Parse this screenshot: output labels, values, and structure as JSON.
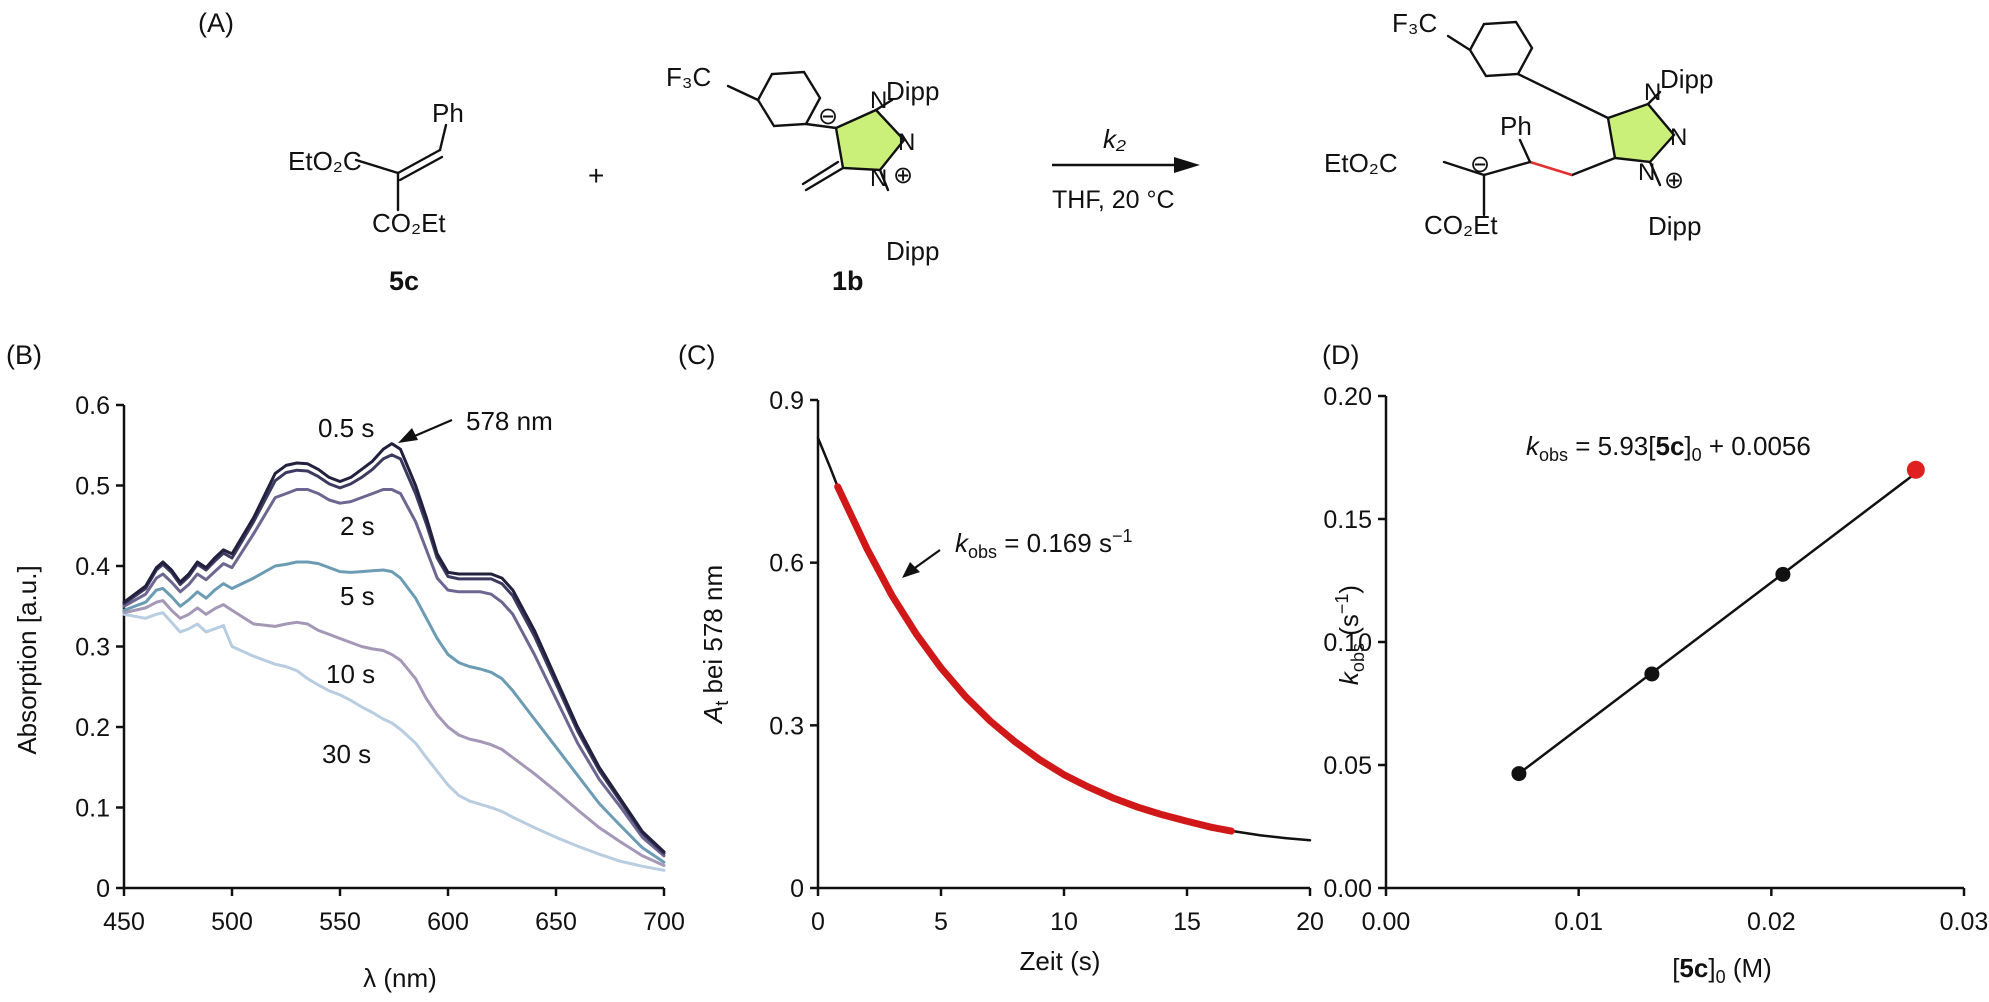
{
  "panel_labels": {
    "a": "(A)",
    "b": "(B)",
    "c": "(C)",
    "d": "(D)"
  },
  "scheme": {
    "reactant1": {
      "ph": "Ph",
      "ester1": "EtO₂C",
      "ester2": "CO₂Et",
      "label": "5c"
    },
    "plus": "+",
    "reactant2": {
      "cf3": "F₃C",
      "dipp_top": "Dipp",
      "n2": "N",
      "dipp_bottom": "Dipp",
      "label": "1b",
      "minus": "⊖",
      "plus": "⊕"
    },
    "arrow": {
      "rate_constant": "k₂",
      "conditions": "THF, 20 °C"
    },
    "product": {
      "cf3": "F₃C",
      "ph": "Ph",
      "ester1": "EtO₂C",
      "ester2": "CO₂Et",
      "dipp_top": "Dipp",
      "dipp_bottom": "Dipp",
      "n2": "N",
      "minus": "⊖",
      "plus": "⊕"
    }
  },
  "colors": {
    "triazole_fill": "#cbf07a",
    "new_bond": "#e03030",
    "fit_line": "#d01818",
    "series_dark": "#22203d",
    "series_light": "#b8cde0"
  },
  "chart_data": [
    {
      "type": "line",
      "panel": "(B)",
      "xlabel": "λ (nm)",
      "ylabel": "Absorption [a.u.]",
      "xlim": [
        450,
        700
      ],
      "ylim": [
        0,
        0.6
      ],
      "xticks": [
        450,
        500,
        550,
        600,
        650,
        700
      ],
      "yticks": [
        0,
        0.1,
        0.2,
        0.3,
        0.4,
        0.5,
        0.6
      ],
      "ytick_labels": [
        "0",
        "0.1",
        "0.2",
        "0.3",
        "0.4",
        "0.5",
        "0.6"
      ],
      "annotation": "578 nm",
      "x": [
        450,
        460,
        465,
        468,
        472,
        476,
        480,
        484,
        488,
        492,
        496,
        500,
        510,
        520,
        525,
        530,
        535,
        540,
        545,
        550,
        555,
        560,
        565,
        570,
        574,
        578,
        585,
        590,
        595,
        600,
        605,
        610,
        615,
        620,
        625,
        630,
        640,
        650,
        660,
        670,
        680,
        690,
        700
      ],
      "series": [
        {
          "name": "0.5 s",
          "color": "#22203d",
          "values": [
            0.355,
            0.375,
            0.398,
            0.405,
            0.395,
            0.38,
            0.39,
            0.405,
            0.398,
            0.41,
            0.42,
            0.415,
            0.46,
            0.515,
            0.525,
            0.528,
            0.527,
            0.52,
            0.51,
            0.505,
            0.51,
            0.52,
            0.53,
            0.545,
            0.552,
            0.545,
            0.5,
            0.46,
            0.415,
            0.392,
            0.39,
            0.39,
            0.39,
            0.39,
            0.385,
            0.37,
            0.32,
            0.26,
            0.2,
            0.15,
            0.11,
            0.07,
            0.045
          ]
        },
        {
          "name": "",
          "color": "#3d3a60",
          "values": [
            0.353,
            0.372,
            0.395,
            0.402,
            0.392,
            0.377,
            0.387,
            0.402,
            0.395,
            0.406,
            0.416,
            0.41,
            0.455,
            0.506,
            0.516,
            0.519,
            0.518,
            0.511,
            0.502,
            0.497,
            0.502,
            0.51,
            0.52,
            0.533,
            0.538,
            0.533,
            0.49,
            0.452,
            0.41,
            0.387,
            0.384,
            0.384,
            0.384,
            0.384,
            0.378,
            0.363,
            0.313,
            0.254,
            0.195,
            0.146,
            0.107,
            0.068,
            0.043
          ]
        },
        {
          "name": "2 s",
          "color": "#6d6690",
          "values": [
            0.35,
            0.365,
            0.385,
            0.39,
            0.38,
            0.368,
            0.377,
            0.39,
            0.383,
            0.393,
            0.403,
            0.398,
            0.44,
            0.485,
            0.49,
            0.495,
            0.495,
            0.49,
            0.482,
            0.478,
            0.48,
            0.485,
            0.49,
            0.495,
            0.495,
            0.49,
            0.455,
            0.42,
            0.385,
            0.37,
            0.368,
            0.368,
            0.368,
            0.365,
            0.355,
            0.34,
            0.29,
            0.235,
            0.18,
            0.135,
            0.1,
            0.063,
            0.04
          ]
        },
        {
          "name": "5 s",
          "color": "#6b9cb3",
          "values": [
            0.345,
            0.355,
            0.37,
            0.372,
            0.362,
            0.35,
            0.358,
            0.368,
            0.36,
            0.37,
            0.378,
            0.372,
            0.385,
            0.4,
            0.402,
            0.405,
            0.405,
            0.403,
            0.398,
            0.393,
            0.392,
            0.393,
            0.394,
            0.395,
            0.393,
            0.385,
            0.36,
            0.335,
            0.31,
            0.29,
            0.28,
            0.275,
            0.272,
            0.268,
            0.26,
            0.245,
            0.21,
            0.175,
            0.14,
            0.105,
            0.077,
            0.05,
            0.032
          ]
        },
        {
          "name": "10 s",
          "color": "#a498b6",
          "values": [
            0.342,
            0.348,
            0.355,
            0.357,
            0.345,
            0.335,
            0.34,
            0.348,
            0.34,
            0.347,
            0.352,
            0.345,
            0.328,
            0.325,
            0.328,
            0.33,
            0.328,
            0.32,
            0.315,
            0.31,
            0.305,
            0.3,
            0.297,
            0.295,
            0.29,
            0.283,
            0.26,
            0.235,
            0.215,
            0.2,
            0.19,
            0.185,
            0.182,
            0.178,
            0.172,
            0.162,
            0.142,
            0.12,
            0.097,
            0.075,
            0.057,
            0.04,
            0.028
          ]
        },
        {
          "name": "30 s",
          "color": "#b8cde0",
          "values": [
            0.34,
            0.335,
            0.34,
            0.342,
            0.33,
            0.318,
            0.322,
            0.328,
            0.318,
            0.322,
            0.326,
            0.3,
            0.288,
            0.278,
            0.275,
            0.27,
            0.26,
            0.252,
            0.245,
            0.24,
            0.233,
            0.225,
            0.218,
            0.21,
            0.205,
            0.197,
            0.18,
            0.162,
            0.145,
            0.128,
            0.115,
            0.108,
            0.104,
            0.1,
            0.095,
            0.088,
            0.075,
            0.063,
            0.052,
            0.042,
            0.033,
            0.027,
            0.022
          ]
        }
      ]
    },
    {
      "type": "line",
      "panel": "(C)",
      "xlabel": "Zeit (s)",
      "ylabel": "Aₜ bei 578 nm",
      "xlim": [
        0,
        20
      ],
      "ylim": [
        0,
        0.9
      ],
      "xticks": [
        0,
        5,
        10,
        15,
        20
      ],
      "yticks": [
        0,
        0.3,
        0.6,
        0.9
      ],
      "ytick_labels": [
        "0",
        "0.3",
        "0.6",
        "0.9"
      ],
      "annotation": "k_obs = 0.169 s⁻¹",
      "series": [
        {
          "name": "",
          "color": "#111111",
          "x": [
            0,
            0.5,
            0.8,
            1,
            2,
            3,
            4,
            5,
            6,
            7,
            8,
            9,
            10,
            11,
            12,
            13,
            14,
            15,
            16,
            17,
            18,
            19,
            20
          ],
          "values": [
            0.83,
            0.775,
            0.74,
            0.72,
            0.625,
            0.54,
            0.468,
            0.406,
            0.353,
            0.308,
            0.27,
            0.237,
            0.209,
            0.186,
            0.166,
            0.149,
            0.135,
            0.123,
            0.112,
            0.104,
            0.097,
            0.092,
            0.088
          ]
        },
        {
          "name": "",
          "color": "#d01818",
          "x": [
            0.8,
            2,
            3,
            4,
            5,
            6,
            7,
            8,
            9,
            10,
            11,
            12,
            13,
            14,
            15,
            16,
            16.8
          ],
          "values": [
            0.74,
            0.625,
            0.54,
            0.468,
            0.406,
            0.353,
            0.308,
            0.27,
            0.237,
            0.209,
            0.186,
            0.166,
            0.149,
            0.135,
            0.123,
            0.112,
            0.105
          ]
        }
      ]
    },
    {
      "type": "scatter",
      "panel": "(D)",
      "xlabel": "[5c]₀ (M)",
      "ylabel": "k_obs (s⁻¹)",
      "xlim": [
        0,
        0.03
      ],
      "ylim": [
        0,
        0.2
      ],
      "xticks": [
        0,
        0.01,
        0.02,
        0.03
      ],
      "xtick_labels": [
        "0.00",
        "0.01",
        "0.02",
        "0.03"
      ],
      "yticks": [
        0,
        0.05,
        0.1,
        0.15,
        0.2
      ],
      "ytick_labels": [
        "0.00",
        "0.05",
        "0.10",
        "0.15",
        "0.20"
      ],
      "annotation": "k_obs = 5.93[5c]₀ + 0.0056",
      "fit": {
        "slope": 5.93,
        "intercept": 0.0056
      },
      "x": [
        0.0069,
        0.0138,
        0.0206,
        0.0275
      ],
      "values": [
        0.0465,
        0.087,
        0.1275,
        0.17
      ],
      "point_colors": [
        "#111111",
        "#111111",
        "#111111",
        "#e02020"
      ]
    }
  ]
}
